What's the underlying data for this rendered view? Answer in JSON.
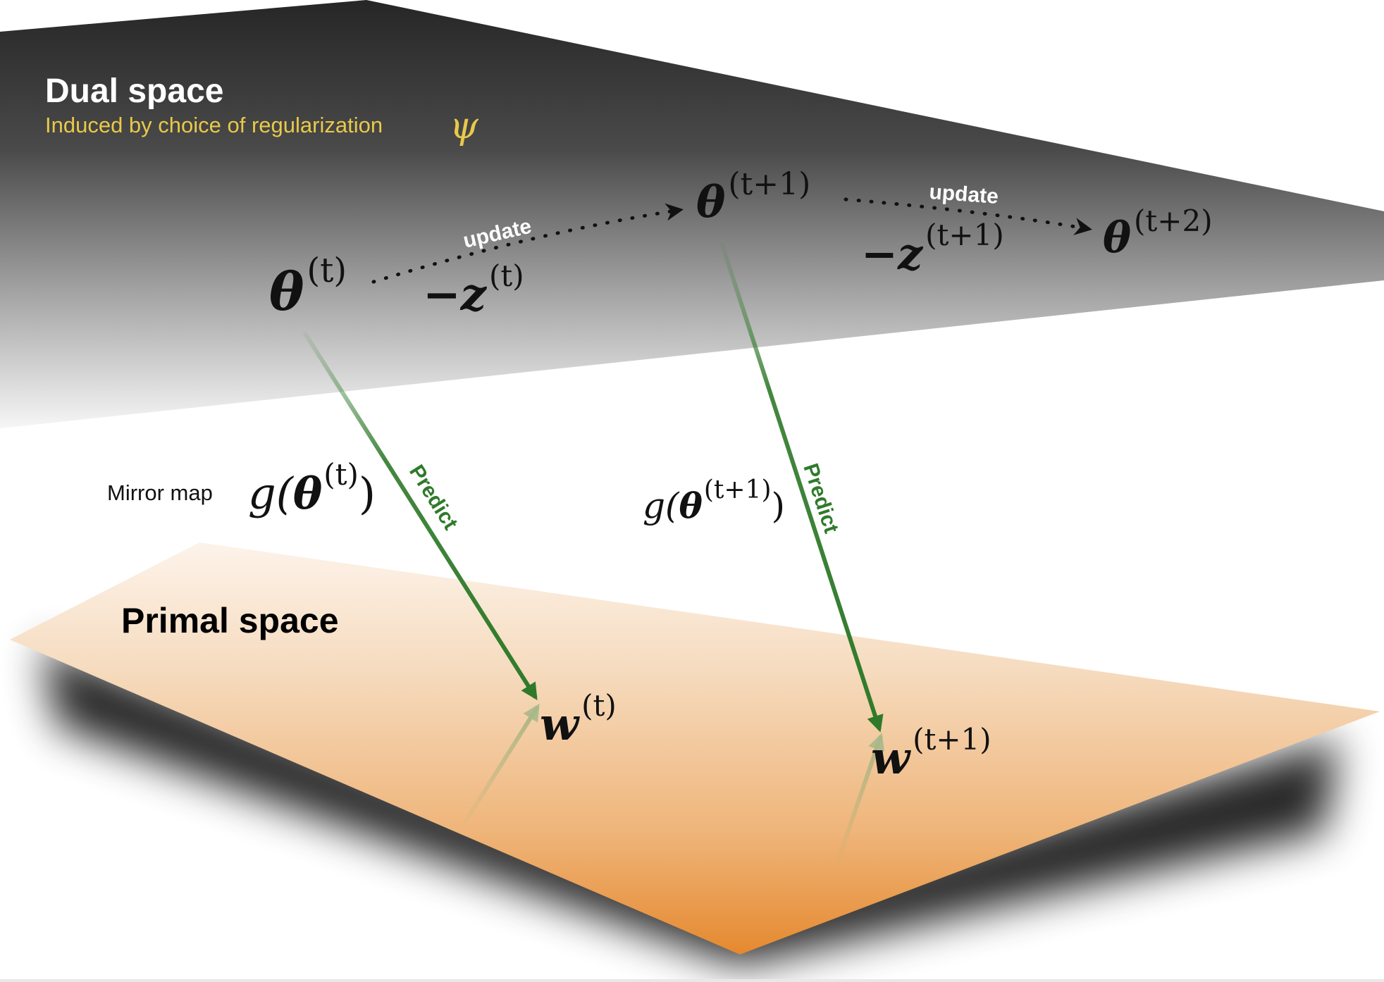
{
  "dual_space": {
    "title": "Dual space",
    "subtitle": "Induced by choice of regularization",
    "symbol": "ψ",
    "colors": {
      "top": "#2b2b2b",
      "bottom": "#f4f4f4",
      "title": "#ffffff",
      "subtitle": "#e8c94a"
    }
  },
  "primal_space": {
    "title": "Primal space",
    "colors": {
      "top": "#fbeee0",
      "bottom": "#e8903a",
      "shadow": "#000000"
    }
  },
  "dual_points": [
    {
      "base": "θ",
      "sup": "(t)"
    },
    {
      "base": "θ",
      "sup": "(t+1)"
    },
    {
      "base": "θ",
      "sup": "(t+2)"
    }
  ],
  "primal_points": [
    {
      "base": "w",
      "sup": "(t)"
    },
    {
      "base": "w",
      "sup": "(t+1)"
    }
  ],
  "updates": [
    {
      "label": "update",
      "step": {
        "base": "−z",
        "sup": "(t)"
      }
    },
    {
      "label": "update",
      "step": {
        "base": "−z",
        "sup": "(t+1)"
      }
    }
  ],
  "mirror_map": {
    "label": "Mirror map",
    "expressions": [
      {
        "fn": "g(",
        "base": "θ",
        "sup": "(t)",
        "close": ")"
      },
      {
        "fn": "g(",
        "base": "θ",
        "sup": "(t+1)",
        "close": ")"
      }
    ]
  },
  "predict": {
    "label": "Predict",
    "color": "#2f7a2a"
  }
}
